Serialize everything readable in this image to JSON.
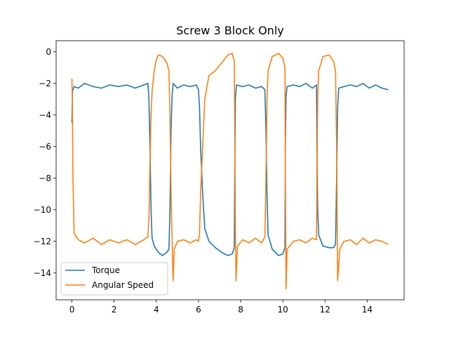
{
  "chart_data": {
    "type": "line",
    "title": "Screw 3 Block Only",
    "xlabel": "",
    "ylabel": "",
    "xlim": [
      -0.75,
      15.75
    ],
    "ylim": [
      -15.7,
      0.7
    ],
    "xticks": [
      0,
      2,
      4,
      6,
      8,
      10,
      12,
      14
    ],
    "yticks": [
      0,
      -2,
      -4,
      -6,
      -8,
      -10,
      -12,
      -14
    ],
    "grid": false,
    "legend": "lower-left",
    "series": [
      {
        "name": "Torque",
        "color": "#1f77b4",
        "points": [
          [
            0.0,
            -4.5
          ],
          [
            0.03,
            -2.5
          ],
          [
            0.1,
            -2.2
          ],
          [
            0.3,
            -2.3
          ],
          [
            0.6,
            -2.0
          ],
          [
            1.0,
            -2.2
          ],
          [
            1.4,
            -2.3
          ],
          [
            1.8,
            -2.1
          ],
          [
            2.2,
            -2.2
          ],
          [
            2.6,
            -2.1
          ],
          [
            3.0,
            -2.3
          ],
          [
            3.4,
            -2.1
          ],
          [
            3.6,
            -2.0
          ],
          [
            3.65,
            -3.0
          ],
          [
            3.7,
            -6.0
          ],
          [
            3.75,
            -10.0
          ],
          [
            3.8,
            -11.8
          ],
          [
            3.9,
            -12.3
          ],
          [
            4.1,
            -12.7
          ],
          [
            4.3,
            -12.9
          ],
          [
            4.5,
            -12.7
          ],
          [
            4.6,
            -12.5
          ],
          [
            4.65,
            -10.0
          ],
          [
            4.7,
            -5.0
          ],
          [
            4.75,
            -2.8
          ],
          [
            4.8,
            -2.0
          ],
          [
            5.0,
            -2.3
          ],
          [
            5.3,
            -2.1
          ],
          [
            5.6,
            -2.2
          ],
          [
            5.9,
            -2.1
          ],
          [
            6.0,
            -2.4
          ],
          [
            6.05,
            -3.5
          ],
          [
            6.1,
            -6.0
          ],
          [
            6.2,
            -9.0
          ],
          [
            6.3,
            -11.2
          ],
          [
            6.5,
            -12.0
          ],
          [
            6.8,
            -12.4
          ],
          [
            7.1,
            -12.7
          ],
          [
            7.4,
            -12.9
          ],
          [
            7.6,
            -12.8
          ],
          [
            7.7,
            -12.4
          ],
          [
            7.72,
            -8.0
          ],
          [
            7.75,
            -3.0
          ],
          [
            7.8,
            -2.1
          ],
          [
            8.1,
            -2.2
          ],
          [
            8.4,
            -2.1
          ],
          [
            8.7,
            -2.3
          ],
          [
            9.0,
            -2.2
          ],
          [
            9.15,
            -2.4
          ],
          [
            9.2,
            -5.0
          ],
          [
            9.25,
            -9.0
          ],
          [
            9.3,
            -11.6
          ],
          [
            9.5,
            -12.5
          ],
          [
            9.8,
            -12.9
          ],
          [
            10.0,
            -12.8
          ],
          [
            10.1,
            -12.4
          ],
          [
            10.12,
            -6.0
          ],
          [
            10.15,
            -2.8
          ],
          [
            10.2,
            -2.2
          ],
          [
            10.5,
            -2.1
          ],
          [
            10.8,
            -2.2
          ],
          [
            11.1,
            -2.0
          ],
          [
            11.4,
            -2.3
          ],
          [
            11.6,
            -2.1
          ],
          [
            11.62,
            -6.0
          ],
          [
            11.65,
            -10.0
          ],
          [
            11.7,
            -11.6
          ],
          [
            11.9,
            -12.3
          ],
          [
            12.2,
            -12.4
          ],
          [
            12.4,
            -12.4
          ],
          [
            12.5,
            -12.2
          ],
          [
            12.55,
            -8.0
          ],
          [
            12.6,
            -3.5
          ],
          [
            12.65,
            -2.3
          ],
          [
            12.9,
            -2.2
          ],
          [
            13.2,
            -2.1
          ],
          [
            13.5,
            -2.2
          ],
          [
            13.8,
            -2.0
          ],
          [
            14.1,
            -2.3
          ],
          [
            14.4,
            -2.1
          ],
          [
            14.7,
            -2.3
          ],
          [
            15.0,
            -2.4
          ]
        ]
      },
      {
        "name": "Angular Speed",
        "color": "#ff7f0e",
        "points": [
          [
            0.0,
            -1.7
          ],
          [
            0.02,
            -3.0
          ],
          [
            0.05,
            -8.0
          ],
          [
            0.1,
            -11.5
          ],
          [
            0.3,
            -11.9
          ],
          [
            0.6,
            -12.1
          ],
          [
            1.0,
            -11.8
          ],
          [
            1.4,
            -12.2
          ],
          [
            1.8,
            -11.9
          ],
          [
            2.2,
            -12.1
          ],
          [
            2.6,
            -11.9
          ],
          [
            3.0,
            -12.2
          ],
          [
            3.4,
            -11.9
          ],
          [
            3.6,
            -11.7
          ],
          [
            3.65,
            -10.5
          ],
          [
            3.7,
            -7.0
          ],
          [
            3.75,
            -4.0
          ],
          [
            3.8,
            -2.5
          ],
          [
            3.9,
            -1.2
          ],
          [
            4.0,
            -0.5
          ],
          [
            4.1,
            -0.2
          ],
          [
            4.3,
            -0.3
          ],
          [
            4.5,
            -0.7
          ],
          [
            4.6,
            -1.2
          ],
          [
            4.65,
            -4.0
          ],
          [
            4.7,
            -9.0
          ],
          [
            4.75,
            -11.8
          ],
          [
            4.8,
            -14.5
          ],
          [
            4.85,
            -12.5
          ],
          [
            5.0,
            -12.0
          ],
          [
            5.3,
            -11.9
          ],
          [
            5.6,
            -12.1
          ],
          [
            5.9,
            -11.9
          ],
          [
            6.0,
            -12.0
          ],
          [
            6.05,
            -11.5
          ],
          [
            6.1,
            -9.0
          ],
          [
            6.2,
            -6.0
          ],
          [
            6.3,
            -3.0
          ],
          [
            6.5,
            -1.5
          ],
          [
            6.8,
            -1.2
          ],
          [
            7.1,
            -0.7
          ],
          [
            7.4,
            -0.2
          ],
          [
            7.6,
            -0.1
          ],
          [
            7.7,
            -0.6
          ],
          [
            7.72,
            -5.0
          ],
          [
            7.75,
            -11.0
          ],
          [
            7.78,
            -14.5
          ],
          [
            7.85,
            -12.3
          ],
          [
            8.1,
            -11.9
          ],
          [
            8.4,
            -12.1
          ],
          [
            8.7,
            -11.8
          ],
          [
            9.0,
            -12.1
          ],
          [
            9.15,
            -11.7
          ],
          [
            9.2,
            -8.0
          ],
          [
            9.25,
            -3.0
          ],
          [
            9.3,
            -1.2
          ],
          [
            9.5,
            -0.3
          ],
          [
            9.8,
            -0.1
          ],
          [
            10.0,
            -0.4
          ],
          [
            10.1,
            -1.0
          ],
          [
            10.12,
            -8.0
          ],
          [
            10.15,
            -15.0
          ],
          [
            10.2,
            -12.5
          ],
          [
            10.5,
            -12.0
          ],
          [
            10.8,
            -11.9
          ],
          [
            11.1,
            -12.1
          ],
          [
            11.4,
            -11.8
          ],
          [
            11.6,
            -11.9
          ],
          [
            11.62,
            -8.0
          ],
          [
            11.65,
            -3.0
          ],
          [
            11.7,
            -1.2
          ],
          [
            11.9,
            -0.3
          ],
          [
            12.2,
            -0.2
          ],
          [
            12.4,
            -0.6
          ],
          [
            12.5,
            -1.2
          ],
          [
            12.55,
            -6.0
          ],
          [
            12.6,
            -14.5
          ],
          [
            12.7,
            -12.5
          ],
          [
            12.9,
            -12.0
          ],
          [
            13.2,
            -11.9
          ],
          [
            13.5,
            -12.2
          ],
          [
            13.8,
            -11.8
          ],
          [
            14.1,
            -12.1
          ],
          [
            14.4,
            -11.9
          ],
          [
            14.7,
            -12.0
          ],
          [
            15.0,
            -12.2
          ]
        ]
      }
    ]
  }
}
